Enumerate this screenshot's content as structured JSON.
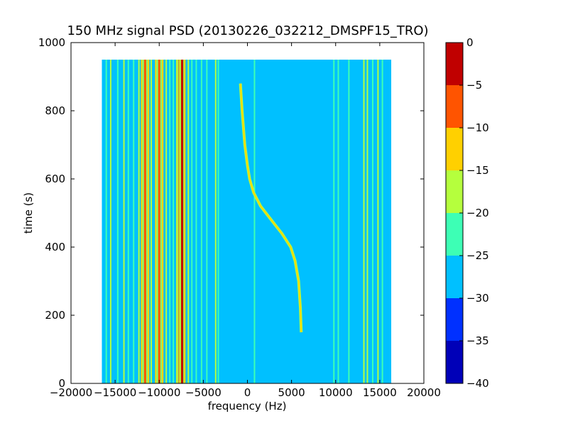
{
  "chart_data": {
    "type": "heatmap",
    "title": "150 MHz signal PSD (20130226_032212_DMSPF15_TRO)",
    "xlabel": "frequency (Hz)",
    "ylabel": "time (s)",
    "xlim": [
      -20000,
      20000
    ],
    "ylim": [
      0,
      1000
    ],
    "xticks": [
      -20000,
      -15000,
      -10000,
      -5000,
      0,
      5000,
      10000,
      15000,
      20000
    ],
    "yticks": [
      0,
      200,
      400,
      600,
      800,
      1000
    ],
    "data_extent": {
      "x": [
        -16500,
        16300
      ],
      "y": [
        0,
        950
      ]
    },
    "background_level": -27.5,
    "colorbar": {
      "levels": [
        -40,
        -35,
        -30,
        -25,
        -20,
        -15,
        -10,
        -5,
        0
      ],
      "colors": [
        "#0000b8",
        "#0030ff",
        "#00c0ff",
        "#3dffb5",
        "#b5ff3d",
        "#ffd000",
        "#ff5400",
        "#c00000"
      ],
      "ticks": [
        0,
        -5,
        -10,
        -15,
        -20,
        -25,
        -30,
        -35,
        -40
      ]
    },
    "vertical_lines": [
      {
        "freq": -16000,
        "level": -22
      },
      {
        "freq": -15500,
        "level": -20
      },
      {
        "freq": -14700,
        "level": -22
      },
      {
        "freq": -14000,
        "level": -20
      },
      {
        "freq": -13500,
        "level": -21
      },
      {
        "freq": -12900,
        "level": -22
      },
      {
        "freq": -12300,
        "level": -17
      },
      {
        "freq": -12000,
        "level": -14
      },
      {
        "freq": -11600,
        "level": -8
      },
      {
        "freq": -11200,
        "level": -12
      },
      {
        "freq": -10900,
        "level": -16
      },
      {
        "freq": -10400,
        "level": -13
      },
      {
        "freq": -10000,
        "level": -7
      },
      {
        "freq": -9600,
        "level": -13
      },
      {
        "freq": -9200,
        "level": -16
      },
      {
        "freq": -8800,
        "level": -21
      },
      {
        "freq": -8400,
        "level": -22
      },
      {
        "freq": -8000,
        "level": -15
      },
      {
        "freq": -7700,
        "level": -7
      },
      {
        "freq": -7400,
        "level": -3
      },
      {
        "freq": -7100,
        "level": -12
      },
      {
        "freq": -6700,
        "level": -17
      },
      {
        "freq": -6300,
        "level": -21
      },
      {
        "freq": -5800,
        "level": -22
      },
      {
        "freq": -5200,
        "level": -23
      },
      {
        "freq": -4600,
        "level": -22
      },
      {
        "freq": -3600,
        "level": -20
      },
      {
        "freq": -3300,
        "level": -23
      },
      {
        "freq": 800,
        "level": -22
      },
      {
        "freq": 9800,
        "level": -22
      },
      {
        "freq": 10300,
        "level": -23
      },
      {
        "freq": 11500,
        "level": -23
      },
      {
        "freq": 13200,
        "level": -20
      },
      {
        "freq": 13600,
        "level": -19
      },
      {
        "freq": 14200,
        "level": -22
      },
      {
        "freq": 14800,
        "level": -20
      },
      {
        "freq": 15300,
        "level": -21
      }
    ],
    "doppler_trace": {
      "level": -14,
      "points": [
        {
          "t": 880,
          "f": -800
        },
        {
          "t": 800,
          "f": -600
        },
        {
          "t": 700,
          "f": -300
        },
        {
          "t": 640,
          "f": 0
        },
        {
          "t": 600,
          "f": 250
        },
        {
          "t": 560,
          "f": 700
        },
        {
          "t": 520,
          "f": 1500
        },
        {
          "t": 480,
          "f": 2700
        },
        {
          "t": 440,
          "f": 3900
        },
        {
          "t": 400,
          "f": 4900
        },
        {
          "t": 360,
          "f": 5400
        },
        {
          "t": 300,
          "f": 5800
        },
        {
          "t": 220,
          "f": 6000
        },
        {
          "t": 150,
          "f": 6100
        }
      ]
    }
  }
}
